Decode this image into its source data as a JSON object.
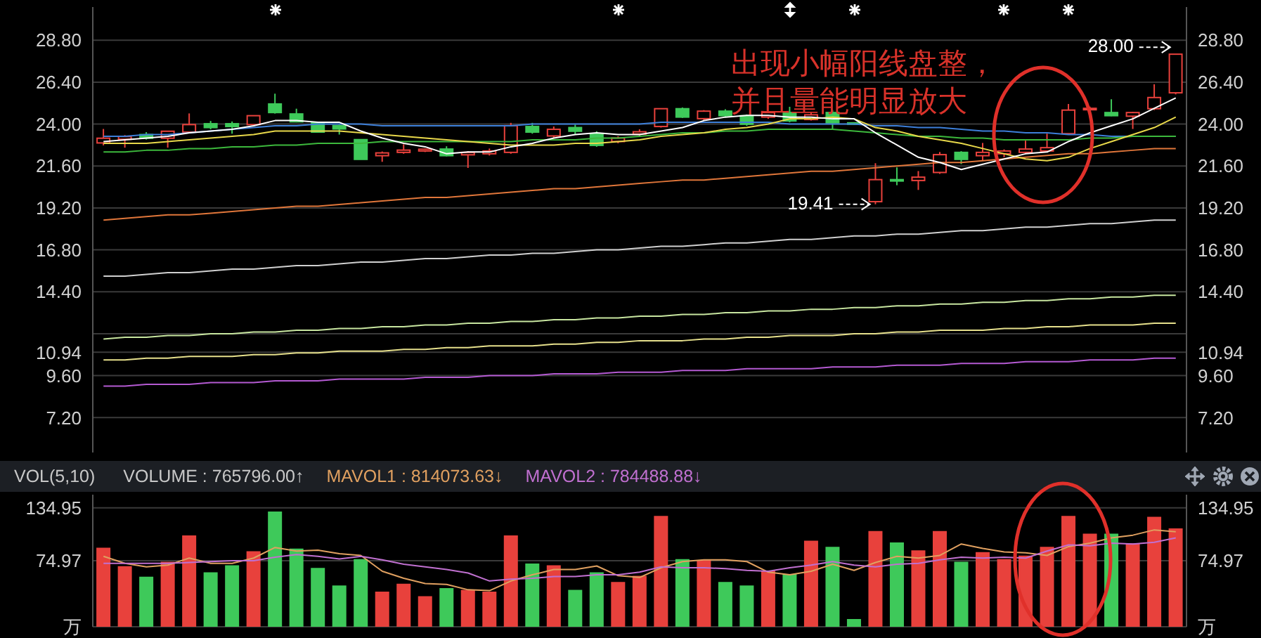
{
  "chart_data": [
    {
      "type": "candlestick",
      "categories": [
        null,
        null,
        null,
        null,
        null,
        null,
        null,
        null,
        null,
        null,
        null,
        null,
        null,
        null,
        null,
        null,
        null,
        null,
        null,
        null,
        null,
        null,
        null,
        null,
        null,
        null,
        null,
        null,
        null,
        null,
        null,
        null,
        null,
        null,
        null,
        null,
        null,
        null,
        null,
        null,
        null,
        null,
        null,
        null,
        null,
        null,
        null,
        null,
        null,
        null,
        null
      ],
      "ohlc": [
        [
          22.92,
          23.72,
          22.78,
          23.19
        ],
        [
          23.13,
          23.37,
          22.65,
          23.29
        ],
        [
          23.4,
          23.54,
          23.11,
          23.19
        ],
        [
          23.19,
          23.62,
          22.65,
          23.59
        ],
        [
          23.54,
          24.61,
          23.5,
          23.97
        ],
        [
          24.02,
          24.18,
          23.7,
          23.8
        ],
        [
          24.02,
          24.15,
          23.45,
          23.86
        ],
        [
          23.97,
          24.5,
          23.93,
          24.48
        ],
        [
          25.15,
          25.74,
          24.6,
          24.66
        ],
        [
          24.58,
          24.88,
          24.1,
          24.13
        ],
        [
          24.07,
          24.1,
          23.5,
          23.54
        ],
        [
          23.91,
          23.97,
          23.4,
          23.72
        ],
        [
          23.11,
          23.11,
          21.98,
          21.98
        ],
        [
          22.19,
          22.43,
          21.84,
          22.35
        ],
        [
          22.38,
          22.84,
          22.3,
          22.51
        ],
        [
          22.46,
          22.6,
          22.4,
          22.56
        ],
        [
          22.57,
          22.73,
          22.15,
          22.19
        ],
        [
          22.24,
          22.45,
          21.49,
          22.38
        ],
        [
          22.3,
          22.6,
          22.2,
          22.46
        ],
        [
          22.38,
          24.07,
          22.3,
          23.91
        ],
        [
          23.86,
          24.07,
          23.45,
          23.54
        ],
        [
          23.32,
          23.86,
          23.2,
          23.7
        ],
        [
          23.8,
          23.97,
          23.4,
          23.59
        ],
        [
          23.45,
          23.59,
          22.7,
          22.78
        ],
        [
          23.0,
          23.3,
          22.9,
          23.2
        ],
        [
          23.43,
          23.7,
          23.3,
          23.56
        ],
        [
          23.86,
          24.9,
          23.8,
          24.88
        ],
        [
          24.88,
          24.95,
          24.35,
          24.4
        ],
        [
          24.31,
          24.8,
          24.2,
          24.74
        ],
        [
          24.74,
          24.85,
          24.4,
          24.48
        ],
        [
          24.48,
          24.55,
          23.9,
          23.99
        ],
        [
          24.4,
          24.75,
          24.3,
          24.66
        ],
        [
          24.66,
          24.99,
          24.1,
          24.18
        ],
        [
          24.26,
          24.7,
          24.2,
          24.53
        ],
        [
          24.66,
          24.8,
          23.72,
          24.07
        ],
        [
          24.07,
          24.1,
          23.95,
          23.99
        ],
        [
          19.56,
          21.76,
          19.41,
          20.82
        ],
        [
          20.82,
          21.52,
          20.5,
          20.74
        ],
        [
          20.77,
          21.31,
          20.23,
          20.96
        ],
        [
          21.23,
          22.4,
          21.15,
          22.25
        ],
        [
          22.38,
          22.45,
          21.71,
          21.98
        ],
        [
          22.19,
          22.92,
          21.9,
          22.38
        ],
        [
          22.3,
          22.55,
          22.1,
          22.46
        ],
        [
          22.38,
          23.05,
          22.3,
          22.57
        ],
        [
          22.46,
          23.45,
          22.4,
          22.65
        ],
        [
          23.45,
          25.15,
          23.4,
          24.8
        ],
        [
          24.85,
          25.0,
          24.7,
          24.9
        ],
        [
          24.66,
          25.42,
          24.45,
          24.48
        ],
        [
          24.45,
          24.7,
          23.72,
          24.66
        ],
        [
          24.88,
          26.28,
          24.8,
          25.52
        ],
        [
          25.79,
          28.0,
          25.7,
          28.0
        ]
      ],
      "colors": [
        "#e8413c",
        "#e8413c",
        "#3ec95a",
        "#e8413c",
        "#e8413c",
        "#3ec95a",
        "#3ec95a",
        "#e8413c",
        "#3ec95a",
        "#3ec95a",
        "#3ec95a",
        "#3ec95a",
        "#3ec95a",
        "#e8413c",
        "#e8413c",
        "#e8413c",
        "#3ec95a",
        "#e8413c",
        "#e8413c",
        "#e8413c",
        "#3ec95a",
        "#e8413c",
        "#3ec95a",
        "#3ec95a",
        "#e8413c",
        "#e8413c",
        "#e8413c",
        "#3ec95a",
        "#e8413c",
        "#3ec95a",
        "#3ec95a",
        "#e8413c",
        "#3ec95a",
        "#e8413c",
        "#3ec95a",
        "#3ec95a",
        "#e8413c",
        "#3ec95a",
        "#e8413c",
        "#e8413c",
        "#3ec95a",
        "#e8413c",
        "#e8413c",
        "#e8413c",
        "#e8413c",
        "#e8413c",
        "#e8413c",
        "#3ec95a",
        "#e8413c",
        "#e8413c",
        "#e8413c"
      ],
      "series": [
        {
          "type": "line",
          "color": "#e0763a",
          "values": [
            18.5,
            18.6,
            18.7,
            18.8,
            18.8,
            18.9,
            19.0,
            19.1,
            19.2,
            19.3,
            19.3,
            19.4,
            19.5,
            19.6,
            19.7,
            19.8,
            19.8,
            19.9,
            20.0,
            20.1,
            20.2,
            20.3,
            20.3,
            20.4,
            20.5,
            20.6,
            20.7,
            20.8,
            20.8,
            20.9,
            21.0,
            21.1,
            21.2,
            21.3,
            21.3,
            21.4,
            21.5,
            21.6,
            21.7,
            21.8,
            21.8,
            21.9,
            22.0,
            22.1,
            22.2,
            22.3,
            22.3,
            22.4,
            22.5,
            22.6,
            22.6
          ]
        },
        {
          "type": "line",
          "color": "#d0d0d0",
          "values": [
            15.3,
            15.3,
            15.4,
            15.5,
            15.5,
            15.6,
            15.7,
            15.7,
            15.8,
            15.9,
            15.9,
            16.0,
            16.1,
            16.1,
            16.2,
            16.3,
            16.3,
            16.4,
            16.5,
            16.5,
            16.6,
            16.6,
            16.7,
            16.8,
            16.8,
            16.9,
            17.0,
            17.0,
            17.1,
            17.2,
            17.2,
            17.3,
            17.4,
            17.4,
            17.5,
            17.6,
            17.6,
            17.7,
            17.7,
            17.8,
            17.9,
            17.9,
            18.0,
            18.1,
            18.1,
            18.2,
            18.3,
            18.3,
            18.4,
            18.5,
            18.5
          ]
        },
        {
          "type": "line",
          "color": "#c8e6a0",
          "values": [
            11.7,
            11.8,
            11.8,
            11.9,
            11.9,
            12.0,
            12.0,
            12.1,
            12.1,
            12.2,
            12.2,
            12.3,
            12.3,
            12.4,
            12.4,
            12.5,
            12.5,
            12.6,
            12.6,
            12.7,
            12.7,
            12.8,
            12.8,
            12.9,
            12.9,
            13.0,
            13.0,
            13.1,
            13.1,
            13.2,
            13.2,
            13.3,
            13.3,
            13.4,
            13.4,
            13.5,
            13.5,
            13.6,
            13.6,
            13.7,
            13.7,
            13.8,
            13.8,
            13.9,
            13.9,
            14.0,
            14.0,
            14.1,
            14.1,
            14.2,
            14.2
          ]
        },
        {
          "type": "line",
          "color": "#e6e08c",
          "values": [
            10.5,
            10.5,
            10.6,
            10.6,
            10.7,
            10.7,
            10.7,
            10.8,
            10.8,
            10.9,
            10.9,
            11.0,
            11.0,
            11.0,
            11.1,
            11.1,
            11.2,
            11.2,
            11.3,
            11.3,
            11.3,
            11.4,
            11.4,
            11.5,
            11.5,
            11.6,
            11.6,
            11.6,
            11.7,
            11.7,
            11.8,
            11.8,
            11.9,
            11.9,
            11.9,
            12.0,
            12.0,
            12.1,
            12.1,
            12.2,
            12.2,
            12.2,
            12.3,
            12.3,
            12.4,
            12.4,
            12.5,
            12.5,
            12.5,
            12.6,
            12.6
          ]
        },
        {
          "type": "line",
          "color": "#b45ad2",
          "values": [
            9.0,
            9.0,
            9.1,
            9.1,
            9.1,
            9.2,
            9.2,
            9.2,
            9.3,
            9.3,
            9.3,
            9.4,
            9.4,
            9.4,
            9.4,
            9.5,
            9.5,
            9.5,
            9.6,
            9.6,
            9.6,
            9.7,
            9.7,
            9.7,
            9.8,
            9.8,
            9.8,
            9.9,
            9.9,
            9.9,
            10.0,
            10.0,
            10.0,
            10.0,
            10.1,
            10.1,
            10.1,
            10.2,
            10.2,
            10.2,
            10.3,
            10.3,
            10.3,
            10.4,
            10.4,
            10.4,
            10.5,
            10.5,
            10.5,
            10.6,
            10.6
          ]
        },
        {
          "type": "line",
          "color": "#3d7fd9",
          "values": [
            23.3,
            23.3,
            23.4,
            23.4,
            23.5,
            23.6,
            23.7,
            23.8,
            23.9,
            23.9,
            24.0,
            24.0,
            24.0,
            23.9,
            23.9,
            23.9,
            23.9,
            23.9,
            23.9,
            23.9,
            24.0,
            24.0,
            24.0,
            24.0,
            24.0,
            24.0,
            24.1,
            24.1,
            24.1,
            24.1,
            24.1,
            24.1,
            24.0,
            24.0,
            24.0,
            24.0,
            23.9,
            23.9,
            23.8,
            23.8,
            23.7,
            23.6,
            23.6,
            23.5,
            23.5,
            23.4,
            23.4,
            23.3,
            23.3,
            23.3,
            23.3
          ]
        },
        {
          "type": "line",
          "color": "#3cb83c",
          "values": [
            22.4,
            22.4,
            22.5,
            22.5,
            22.6,
            22.6,
            22.7,
            22.7,
            22.8,
            22.8,
            22.9,
            22.9,
            22.9,
            23.0,
            23.0,
            23.0,
            23.0,
            23.0,
            23.0,
            23.0,
            23.1,
            23.1,
            23.1,
            23.2,
            23.2,
            23.3,
            23.4,
            23.5,
            23.5,
            23.6,
            23.6,
            23.7,
            23.7,
            23.7,
            23.7,
            23.6,
            23.5,
            23.4,
            23.3,
            23.3,
            23.2,
            23.2,
            23.1,
            23.1,
            23.1,
            23.1,
            23.2,
            23.2,
            23.3,
            23.3,
            23.3
          ]
        },
        {
          "type": "line",
          "color": "#e8d84a",
          "values": [
            22.9,
            22.9,
            22.9,
            23.0,
            23.1,
            23.2,
            23.3,
            23.4,
            23.6,
            23.6,
            23.6,
            23.6,
            23.5,
            23.4,
            23.3,
            23.2,
            23.1,
            23.0,
            22.9,
            22.8,
            22.8,
            22.8,
            22.9,
            22.9,
            23.0,
            23.1,
            23.3,
            23.4,
            23.5,
            23.7,
            23.8,
            24.0,
            24.3,
            24.3,
            24.4,
            24.3,
            23.8,
            23.6,
            23.3,
            23.1,
            22.9,
            22.6,
            22.3,
            22.0,
            21.9,
            22.1,
            22.6,
            23.0,
            23.4,
            23.8,
            24.4
          ]
        },
        {
          "type": "line",
          "color": "#ffffff",
          "values": [
            23.0,
            23.1,
            23.2,
            23.3,
            23.5,
            23.6,
            23.7,
            23.9,
            24.2,
            24.2,
            24.1,
            24.1,
            23.6,
            23.2,
            22.9,
            22.7,
            22.3,
            22.4,
            22.4,
            22.7,
            22.9,
            23.2,
            23.4,
            23.5,
            23.4,
            23.4,
            23.6,
            23.8,
            24.2,
            24.4,
            24.5,
            24.5,
            24.4,
            24.4,
            24.3,
            24.3,
            23.5,
            22.8,
            22.1,
            21.8,
            21.4,
            21.7,
            22.0,
            22.3,
            22.4,
            23.0,
            23.5,
            23.9,
            24.3,
            24.9,
            25.5
          ]
        }
      ],
      "ylim": [
        5.2,
        30.7
      ],
      "yticks": [
        {
          "value": 7.2,
          "label": "7.20"
        },
        {
          "value": 9.6,
          "label": "9.60"
        },
        {
          "value": 10.94,
          "label": "10.94"
        },
        {
          "value": 12,
          "label": null
        },
        {
          "value": 14.4,
          "label": "14.40"
        },
        {
          "value": 16.8,
          "label": "16.80"
        },
        {
          "value": 19.2,
          "label": "19.20"
        },
        {
          "value": 21.6,
          "label": "21.60"
        },
        {
          "value": 24,
          "label": "24.00"
        },
        {
          "value": 26.4,
          "label": "26.40"
        },
        {
          "value": 28.8,
          "label": "28.80"
        }
      ],
      "y2lim": [
        5.2,
        30.7
      ],
      "y2ticks": [
        {
          "value": 7.2,
          "label": "7.20"
        },
        {
          "value": 9.6,
          "label": "9.60"
        },
        {
          "value": 10.94,
          "label": "10.94"
        },
        {
          "value": 12,
          "label": null
        },
        {
          "value": 14.4,
          "label": "14.40"
        },
        {
          "value": 16.8,
          "label": "16.80"
        },
        {
          "value": 19.2,
          "label": "19.20"
        },
        {
          "value": 21.6,
          "label": "21.60"
        },
        {
          "value": 24,
          "label": "24.00"
        },
        {
          "value": 26.4,
          "label": "26.40"
        },
        {
          "value": 28.8,
          "label": "28.80"
        }
      ],
      "grid": "y",
      "annotations": [
        "出现小幅阳线盘整，并且量能明显放大",
        "19.41",
        "28.00"
      ]
    },
    {
      "type": "bar",
      "title": "VOL(5,10)",
      "categories": [
        null,
        null,
        null,
        null,
        null,
        null,
        null,
        null,
        null,
        null,
        null,
        null,
        null,
        null,
        null,
        null,
        null,
        null,
        null,
        null,
        null,
        null,
        null,
        null,
        null,
        null,
        null,
        null,
        null,
        null,
        null,
        null,
        null,
        null,
        null,
        null,
        null,
        null,
        null,
        null,
        null,
        null,
        null,
        null,
        null,
        null,
        null,
        null,
        null,
        null,
        null
      ],
      "series": [
        {
          "name": "VOLUME : 765796.00↑",
          "values": [
            89,
            68,
            56,
            73,
            103,
            61,
            69,
            85,
            130,
            88,
            66,
            46,
            76,
            39,
            48,
            34,
            43,
            41,
            39,
            103,
            71,
            69,
            41,
            61,
            50,
            57,
            125,
            76,
            75,
            50,
            46,
            63,
            59,
            97,
            90,
            8,
            108,
            95,
            86,
            108,
            73,
            84,
            76,
            80,
            90,
            125,
            105,
            105,
            94,
            124,
            111
          ],
          "colors": [
            "#e8413c",
            "#e8413c",
            "#3ec95a",
            "#e8413c",
            "#e8413c",
            "#3ec95a",
            "#3ec95a",
            "#e8413c",
            "#3ec95a",
            "#3ec95a",
            "#3ec95a",
            "#3ec95a",
            "#3ec95a",
            "#e8413c",
            "#e8413c",
            "#e8413c",
            "#3ec95a",
            "#e8413c",
            "#e8413c",
            "#e8413c",
            "#3ec95a",
            "#e8413c",
            "#3ec95a",
            "#3ec95a",
            "#e8413c",
            "#e8413c",
            "#e8413c",
            "#3ec95a",
            "#e8413c",
            "#3ec95a",
            "#3ec95a",
            "#e8413c",
            "#3ec95a",
            "#e8413c",
            "#3ec95a",
            "#3ec95a",
            "#e8413c",
            "#3ec95a",
            "#e8413c",
            "#e8413c",
            "#3ec95a",
            "#e8413c",
            "#e8413c",
            "#e8413c",
            "#e8413c",
            "#e8413c",
            "#e8413c",
            "#3ec95a",
            "#e8413c",
            "#e8413c",
            "#e8413c"
          ]
        },
        {
          "type": "line",
          "name": "MAVOL1 : 814073.63↓",
          "color": "#e0a060",
          "values": [
            80,
            72,
            68,
            70,
            78,
            72,
            72,
            78,
            90,
            86,
            87,
            83,
            81,
            63,
            55,
            49,
            48,
            42,
            41,
            52,
            59,
            65,
            65,
            69,
            58,
            56,
            67,
            74,
            76,
            76,
            74,
            62,
            59,
            63,
            71,
            64,
            73,
            80,
            78,
            81,
            94,
            89,
            85,
            84,
            81,
            91,
            95,
            101,
            104,
            110,
            108
          ]
        },
        {
          "type": "line",
          "name": "MAVOL2 : 784488.88↓",
          "color": "#c070d0",
          "values": [
            72,
            72,
            72,
            72,
            73,
            74,
            75,
            75,
            79,
            82,
            80,
            77,
            80,
            76,
            71,
            68,
            65,
            61,
            52,
            54,
            55,
            57,
            57,
            59,
            59,
            62,
            68,
            67,
            67,
            66,
            64,
            63,
            67,
            70,
            74,
            70,
            68,
            71,
            72,
            76,
            79,
            78,
            79,
            78,
            86,
            93,
            92,
            95,
            94,
            96,
            101
          ]
        }
      ],
      "ylim": [
        0,
        150
      ],
      "yticks": [
        {
          "value": 0,
          "label": "万"
        },
        {
          "value": 74.97,
          "label": "74.97"
        },
        {
          "value": 134.95,
          "label": "134.95"
        }
      ],
      "y2lim": [
        0,
        150
      ],
      "y2ticks": [
        {
          "value": 0,
          "label": "万"
        },
        {
          "value": 74.97,
          "label": "74.97"
        },
        {
          "value": 134.95,
          "label": "134.95"
        }
      ],
      "grid": "y",
      "legend": "top left"
    }
  ]
}
